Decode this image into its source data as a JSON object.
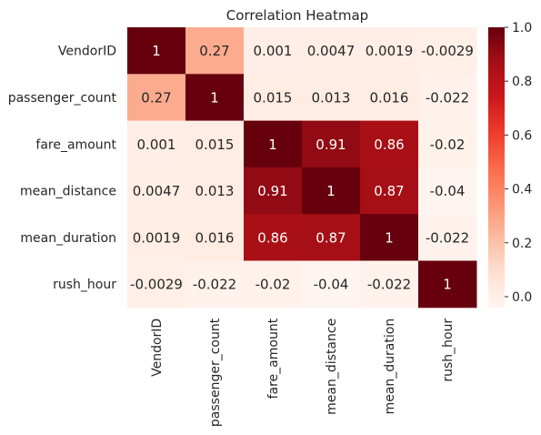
{
  "chart_data": {
    "type": "heatmap",
    "title": "Correlation Heatmap",
    "xlabel": "",
    "ylabel": "",
    "row_labels": [
      "VendorID",
      "passenger_count",
      "fare_amount",
      "mean_distance",
      "mean_duration",
      "rush_hour"
    ],
    "col_labels": [
      "VendorID",
      "passenger_count",
      "fare_amount",
      "mean_distance",
      "mean_duration",
      "rush_hour"
    ],
    "values": [
      [
        1,
        0.27,
        0.001,
        0.0047,
        0.0019,
        -0.0029
      ],
      [
        0.27,
        1,
        0.015,
        0.013,
        0.016,
        -0.022
      ],
      [
        0.001,
        0.015,
        1,
        0.91,
        0.86,
        -0.02
      ],
      [
        0.0047,
        0.013,
        0.91,
        1,
        0.87,
        -0.04
      ],
      [
        0.0019,
        0.016,
        0.86,
        0.87,
        1,
        -0.022
      ],
      [
        -0.0029,
        -0.022,
        -0.02,
        -0.04,
        -0.022,
        1
      ]
    ],
    "cell_labels": [
      [
        "1",
        "0.27",
        "0.001",
        "0.0047",
        "0.0019",
        "-0.0029"
      ],
      [
        "0.27",
        "1",
        "0.015",
        "0.013",
        "0.016",
        "-0.022"
      ],
      [
        "0.001",
        "0.015",
        "1",
        "0.91",
        "0.86",
        "-0.02"
      ],
      [
        "0.0047",
        "0.013",
        "0.91",
        "1",
        "0.87",
        "-0.04"
      ],
      [
        "0.0019",
        "0.016",
        "0.86",
        "0.87",
        "1",
        "-0.022"
      ],
      [
        "-0.0029",
        "-0.022",
        "-0.02",
        "-0.04",
        "-0.022",
        "1"
      ]
    ],
    "colorbar": {
      "colormap": "Reds",
      "vmin": -0.04,
      "vmax": 1,
      "ticks": [
        0.0,
        0.2,
        0.4,
        0.6,
        0.8,
        1.0
      ],
      "tick_labels": [
        "0.0",
        "0.2",
        "0.4",
        "0.6",
        "0.8",
        "1.0"
      ]
    },
    "grid": false,
    "legend": "colorbar-right"
  }
}
